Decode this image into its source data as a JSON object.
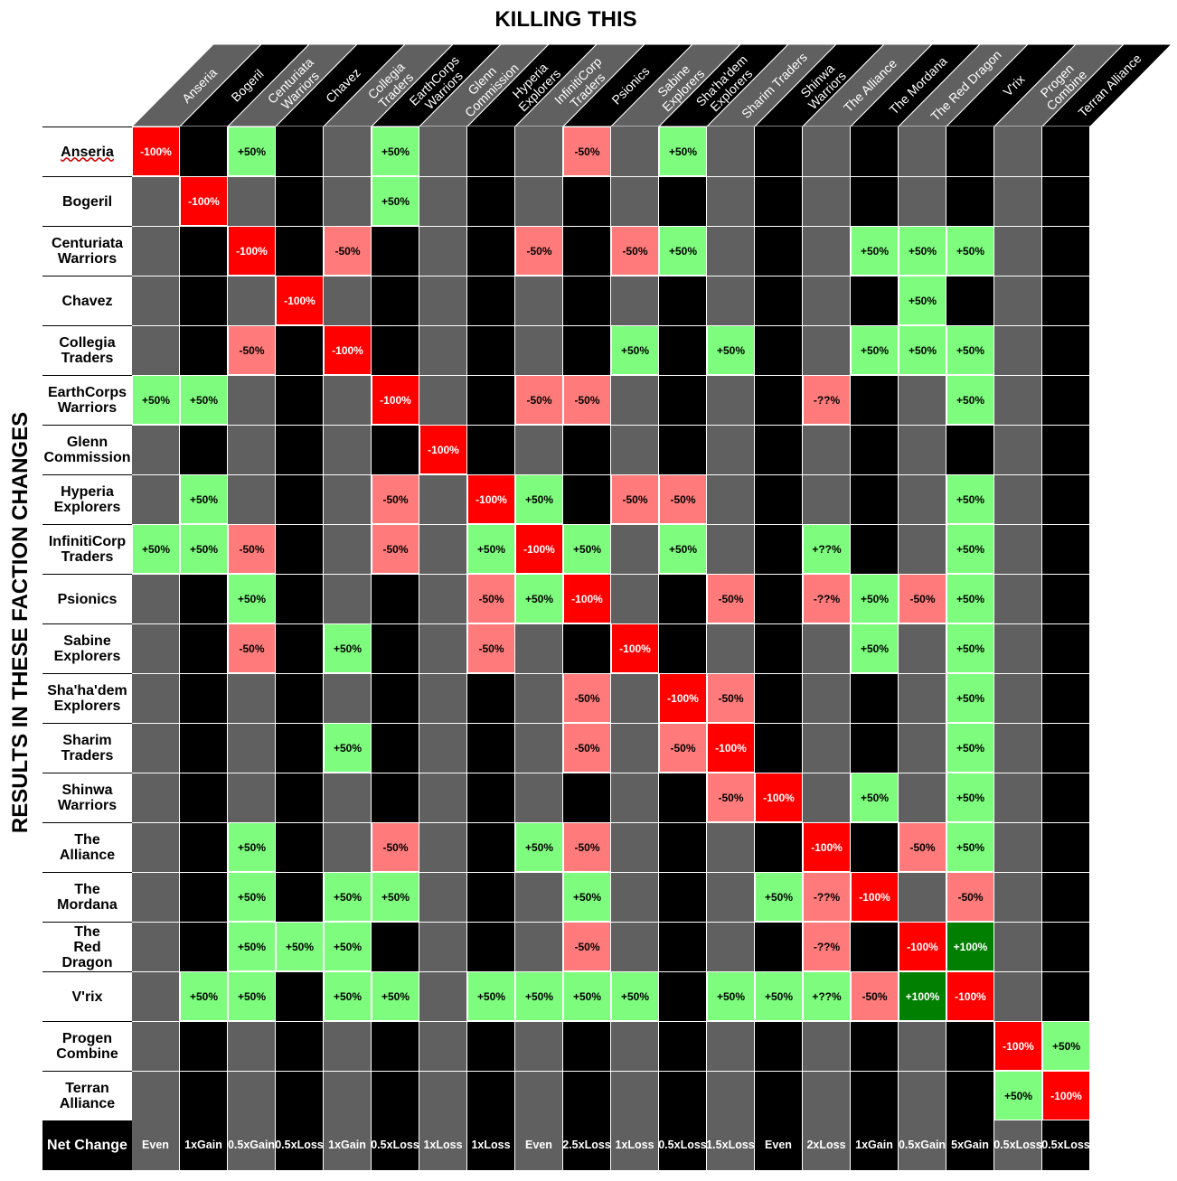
{
  "title": "KILLING THIS",
  "ylabel": "RESULTS IN THESE FACTION CHANGES",
  "net_label": "Net Change",
  "colors": {
    "col_a": "#606060",
    "col_b": "#000000",
    "strong_loss": "#ff0000",
    "loss": "#ff7b7b",
    "gain": "#7dfc7d",
    "strong_gain": "#007f00"
  },
  "factions": [
    "Anseria",
    "Bogeril",
    "Centuriata Warriors",
    "Chavez",
    "Collegia Traders",
    "EarthCorps Warriors",
    "Glenn Commission",
    "Hyperia Explorers",
    "InfinitiCorp Traders",
    "Psionics",
    "Sabine Explorers",
    "Sha'ha'dem Explorers",
    "Sharim Traders",
    "Shinwa Warriors",
    "The Alliance",
    "The Mordana",
    "The Red Dragon",
    "V'rix",
    "Progen Combine",
    "Terran Alliance"
  ],
  "column_headers": [
    "Anseria",
    "Bogeril",
    "Centuriata\nWarriors",
    "Chavez",
    "Collegia\nTraders",
    "EarthCorps\nWarriors",
    "Glenn\nCommission",
    "Hyperia\nExplorers",
    "InfinitiCorp\nTraders",
    "Psionics",
    "Sabine\nExplorers",
    "Sha'ha'dem\nExplorers",
    "Sharim Traders",
    "Shinwa\nWarriors",
    "The Alliance",
    "The Mordana",
    "The Red Dragon",
    "V'rix",
    "Progen\nCombine",
    "Terran Alliance"
  ],
  "row_headers": [
    "Anseria",
    "Bogeril",
    "Centuriata\nWarriors",
    "Chavez",
    "Collegia\nTraders",
    "EarthCorps\nWarriors",
    "Glenn\nCommission",
    "Hyperia\nExplorers",
    "InfinitiCorp\nTraders",
    "Psionics",
    "Sabine\nExplorers",
    "Sha'ha'dem\nExplorers",
    "Sharim\nTraders",
    "Shinwa\nWarriors",
    "The\nAlliance",
    "The\nMordana",
    "The\nRed\nDragon",
    "V'rix",
    "Progen\nCombine",
    "Terran\nAlliance"
  ],
  "net_change": [
    "Even",
    "1x\nGain",
    "0.5x\nGain",
    "0.5x\nLoss",
    "1x\nGain",
    "0.5x\nLoss",
    "1x\nLoss",
    "1x\nLoss",
    "Even",
    "2.5x\nLoss",
    "1x\nLoss",
    "0.5x\nLoss",
    "1.5x\nLoss",
    "Even",
    "2x\nLoss",
    "1x\nGain",
    "0.5x\nGain",
    "5x\nGain",
    "0.5x\nLoss",
    "0.5x\nLoss"
  ],
  "chart_data": {
    "type": "heatmap",
    "title": "KILLING THIS",
    "ylabel": "RESULTS IN THESE FACTION CHANGES",
    "columns": [
      "Anseria",
      "Bogeril",
      "Centuriata Warriors",
      "Chavez",
      "Collegia Traders",
      "EarthCorps Warriors",
      "Glenn Commission",
      "Hyperia Explorers",
      "InfinitiCorp Traders",
      "Psionics",
      "Sabine Explorers",
      "Sha'ha'dem Explorers",
      "Sharim Traders",
      "Shinwa Warriors",
      "The Alliance",
      "The Mordana",
      "The Red Dragon",
      "V'rix",
      "Progen Combine",
      "Terran Alliance"
    ],
    "rows": [
      "Anseria",
      "Bogeril",
      "Centuriata Warriors",
      "Chavez",
      "Collegia Traders",
      "EarthCorps Warriors",
      "Glenn Commission",
      "Hyperia Explorers",
      "InfinitiCorp Traders",
      "Psionics",
      "Sabine Explorers",
      "Sha'ha'dem Explorers",
      "Sharim Traders",
      "Shinwa Warriors",
      "The Alliance",
      "The Mordana",
      "The Red Dragon",
      "V'rix",
      "Progen Combine",
      "Terran Alliance"
    ],
    "values": [
      [
        "-100%",
        "",
        "+50%",
        "",
        "",
        "+50%",
        "",
        "",
        "",
        "-50%",
        "",
        "+50%",
        "",
        "",
        "",
        "",
        "",
        "",
        "",
        ""
      ],
      [
        "",
        "-100%",
        "",
        "",
        "",
        "+50%",
        "",
        "",
        "",
        "",
        "",
        "",
        "",
        "",
        "",
        "",
        "",
        "",
        "",
        ""
      ],
      [
        "",
        "",
        "-100%",
        "",
        "-50%",
        "",
        "",
        "",
        "-50%",
        "",
        "-50%",
        "+50%",
        "",
        "",
        "",
        "+50%",
        "+50%",
        "+50%",
        "",
        ""
      ],
      [
        "",
        "",
        "",
        "-100%",
        "",
        "",
        "",
        "",
        "",
        "",
        "",
        "",
        "",
        "",
        "",
        "",
        "+50%",
        "",
        "",
        ""
      ],
      [
        "",
        "",
        "-50%",
        "",
        "-100%",
        "",
        "",
        "",
        "",
        "",
        "+50%",
        "",
        "+50%",
        "",
        "",
        "+50%",
        "+50%",
        "+50%",
        "",
        ""
      ],
      [
        "+50%",
        "+50%",
        "",
        "",
        "",
        "-100%",
        "",
        "",
        "-50%",
        "-50%",
        "",
        "",
        "",
        "",
        "-??%",
        "",
        "",
        "+50%",
        "",
        ""
      ],
      [
        "",
        "",
        "",
        "",
        "",
        "",
        "-100%",
        "",
        "",
        "",
        "",
        "",
        "",
        "",
        "",
        "",
        "",
        "",
        "",
        ""
      ],
      [
        "",
        "+50%",
        "",
        "",
        "",
        "-50%",
        "",
        "-100%",
        "+50%",
        "",
        "-50%",
        "-50%",
        "",
        "",
        "",
        "",
        "",
        "+50%",
        "",
        ""
      ],
      [
        "+50%",
        "+50%",
        "-50%",
        "",
        "",
        "-50%",
        "",
        "+50%",
        "-100%",
        "+50%",
        "",
        "+50%",
        "",
        "",
        "+??%",
        "",
        "",
        "+50%",
        "",
        ""
      ],
      [
        "",
        "",
        "+50%",
        "",
        "",
        "",
        "",
        "-50%",
        "+50%",
        "-100%",
        "",
        "",
        "-50%",
        "",
        "-??%",
        "+50%",
        "-50%",
        "+50%",
        "",
        ""
      ],
      [
        "",
        "",
        "-50%",
        "",
        "+50%",
        "",
        "",
        "-50%",
        "",
        "",
        "-100%",
        "",
        "",
        "",
        "",
        "+50%",
        "",
        "+50%",
        "",
        ""
      ],
      [
        "",
        "",
        "",
        "",
        "",
        "",
        "",
        "",
        "",
        "-50%",
        "",
        "-100%",
        "-50%",
        "",
        "",
        "",
        "",
        "+50%",
        "",
        ""
      ],
      [
        "",
        "",
        "",
        "",
        "+50%",
        "",
        "",
        "",
        "",
        "-50%",
        "",
        "-50%",
        "-100%",
        "",
        "",
        "",
        "",
        "+50%",
        "",
        ""
      ],
      [
        "",
        "",
        "",
        "",
        "",
        "",
        "",
        "",
        "",
        "",
        "",
        "",
        "-50%",
        "-100%",
        "",
        "+50%",
        "",
        "+50%",
        "",
        ""
      ],
      [
        "",
        "",
        "+50%",
        "",
        "",
        "-50%",
        "",
        "",
        "+50%",
        "-50%",
        "",
        "",
        "",
        "",
        "-100%",
        "",
        "-50%",
        "+50%",
        "",
        ""
      ],
      [
        "",
        "",
        "+50%",
        "",
        "+50%",
        "+50%",
        "",
        "",
        "",
        "+50%",
        "",
        "",
        "",
        "+50%",
        "-??%",
        "-100%",
        "",
        "-50%",
        "",
        ""
      ],
      [
        "",
        "",
        "+50%",
        "+50%",
        "+50%",
        "",
        "",
        "",
        "",
        "-50%",
        "",
        "",
        "",
        "",
        "-??%",
        "",
        "-100%",
        "+100%",
        "",
        ""
      ],
      [
        "",
        "+50%",
        "+50%",
        "",
        "+50%",
        "+50%",
        "",
        "+50%",
        "+50%",
        "+50%",
        "+50%",
        "",
        "+50%",
        "+50%",
        "+??%",
        "-50%",
        "+100%",
        "-100%",
        "",
        ""
      ],
      [
        "",
        "",
        "",
        "",
        "",
        "",
        "",
        "",
        "",
        "",
        "",
        "",
        "",
        "",
        "",
        "",
        "",
        "",
        "-100%",
        "+50%"
      ],
      [
        "",
        "",
        "",
        "",
        "",
        "",
        "",
        "",
        "",
        "",
        "",
        "",
        "",
        "",
        "",
        "",
        "",
        "",
        "+50%",
        "-100%"
      ]
    ],
    "net_change": [
      "Even",
      "1x Gain",
      "0.5x Gain",
      "0.5x Loss",
      "1x Gain",
      "0.5x Loss",
      "1x Loss",
      "1x Loss",
      "Even",
      "2.5x Loss",
      "1x Loss",
      "0.5x Loss",
      "1.5x Loss",
      "Even",
      "2x Loss",
      "1x Gain",
      "0.5x Gain",
      "5x Gain",
      "0.5x Loss",
      "0.5x Loss"
    ]
  }
}
